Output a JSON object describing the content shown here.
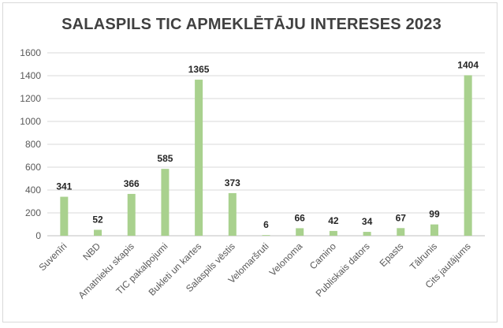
{
  "chart_data": {
    "type": "bar",
    "title": "SALASPILS TIC APMEKLĒTĀJU INTERESES 2023",
    "xlabel": "",
    "ylabel": "",
    "ylim": [
      0,
      1600
    ],
    "yticks": [
      0,
      200,
      400,
      600,
      800,
      1000,
      1200,
      1400,
      1600
    ],
    "grid": true,
    "legend": "none",
    "bar_color": "#a9d18e",
    "categories": [
      "Suvenīri",
      "NBD",
      "Amatnieku skapis",
      "TIC pakalpojumi",
      "Bukleti un kartes",
      "Salaspils vēstis",
      "Velomaršruti",
      "Velonoma",
      "Camino",
      "Publiskais dators",
      "Epasts",
      "Tālrunis",
      "Cits jautājums"
    ],
    "values": [
      341,
      52,
      366,
      585,
      1365,
      373,
      6,
      66,
      42,
      34,
      67,
      99,
      1404
    ],
    "data_labels": [
      "341",
      "52",
      "366",
      "585",
      "1365",
      "373",
      "6",
      "66",
      "42",
      "34",
      "67",
      "99",
      "1404"
    ]
  }
}
